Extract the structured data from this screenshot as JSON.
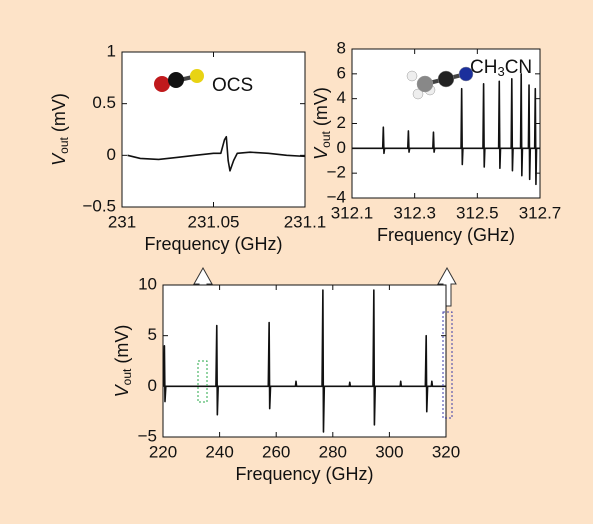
{
  "chart_data": [
    {
      "type": "line",
      "annotation": "OCS",
      "xlabel": "Frequency (GHz)",
      "ylabel": "V",
      "ylabel_sub": "out",
      "ylabel_unit": " (mV)",
      "color": "#111111",
      "x": [
        231.003,
        231.01,
        231.02,
        231.03,
        231.04,
        231.05,
        231.054,
        231.056,
        231.057,
        231.058,
        231.059,
        231.061,
        231.063,
        231.07,
        231.08,
        231.09,
        231.1
      ],
      "values": [
        0.0,
        -0.03,
        -0.04,
        -0.02,
        0.0,
        0.02,
        0.02,
        0.15,
        0.18,
        -0.05,
        -0.15,
        -0.05,
        0.02,
        0.03,
        0.02,
        0.0,
        -0.01
      ],
      "xlim": [
        231,
        231.1
      ],
      "xticks": [
        231,
        231.05,
        231.1
      ],
      "ylim": [
        -0.5,
        1
      ],
      "yticks": [
        {
          "value": -0.5,
          "label": "−0.5"
        },
        0,
        0.5,
        1
      ]
    },
    {
      "type": "line",
      "annotation": {
        "text": "CH",
        "sub": "3",
        "rest": "CN"
      },
      "xlabel": "Frequency (GHz)",
      "ylabel": "V",
      "ylabel_sub": "out",
      "ylabel_unit": " (mV)",
      "color": "#111111",
      "x": [
        312.1,
        312.198,
        312.2,
        312.202,
        312.204,
        312.278,
        312.28,
        312.282,
        312.284,
        312.358,
        312.36,
        312.362,
        312.364,
        312.448,
        312.45,
        312.452,
        312.454,
        312.518,
        312.52,
        312.522,
        312.524,
        312.568,
        312.57,
        312.572,
        312.574,
        312.608,
        312.61,
        312.612,
        312.614,
        312.638,
        312.64,
        312.642,
        312.644,
        312.663,
        312.665,
        312.667,
        312.669,
        312.683,
        312.685,
        312.687,
        312.689,
        312.7
      ],
      "values": [
        0,
        0,
        1.7,
        -0.4,
        0,
        0,
        1.4,
        -0.3,
        0,
        0,
        1.3,
        -0.3,
        0,
        0,
        4.8,
        -1.3,
        0,
        0,
        5.2,
        -1.5,
        0,
        0,
        5.4,
        -1.6,
        0,
        0,
        5.6,
        -1.8,
        0,
        0,
        6.0,
        -2.2,
        0,
        0,
        5.1,
        -2.5,
        0,
        0,
        4.8,
        -2.9,
        0,
        0
      ],
      "xlim": [
        312.1,
        312.7
      ],
      "xticks": [
        312.1,
        312.3,
        312.5,
        312.7
      ],
      "ylim": [
        -4,
        8
      ],
      "yticks": [
        {
          "value": -4,
          "label": "−4"
        },
        {
          "value": -2,
          "label": "−2"
        },
        0,
        2,
        4,
        6,
        8
      ]
    },
    {
      "type": "line",
      "xlabel": "Frequency (GHz)",
      "ylabel": "V",
      "ylabel_sub": "out",
      "ylabel_unit": " (mV)",
      "color": "#111111",
      "x": [
        220.3,
        220.5,
        220.7,
        221,
        238.7,
        239,
        239.2,
        239.5,
        257.2,
        257.5,
        257.7,
        258,
        266.8,
        267,
        267.2,
        276.2,
        276.5,
        276.7,
        277,
        285.8,
        286,
        286.2,
        294.2,
        294.5,
        294.7,
        295,
        303.8,
        304,
        304.2,
        312.7,
        313,
        313.2,
        313.5,
        314.8,
        315,
        315.2,
        320
      ],
      "values": [
        0,
        4,
        -1.5,
        0,
        0,
        6,
        -2.8,
        0,
        0,
        6.3,
        -2.2,
        0,
        0,
        0.5,
        0,
        0,
        9.5,
        -4.5,
        0,
        0,
        0.4,
        0,
        0,
        9.5,
        -3.8,
        0,
        0,
        0.5,
        0,
        0,
        5,
        -2.5,
        0,
        0,
        0.5,
        0,
        0
      ],
      "xlim": [
        220,
        320
      ],
      "xticks": [
        220,
        240,
        260,
        280,
        300,
        320
      ],
      "ylim": [
        -5,
        10
      ],
      "yticks": [
        {
          "value": -5,
          "label": "−5"
        },
        0,
        5,
        10
      ]
    }
  ]
}
